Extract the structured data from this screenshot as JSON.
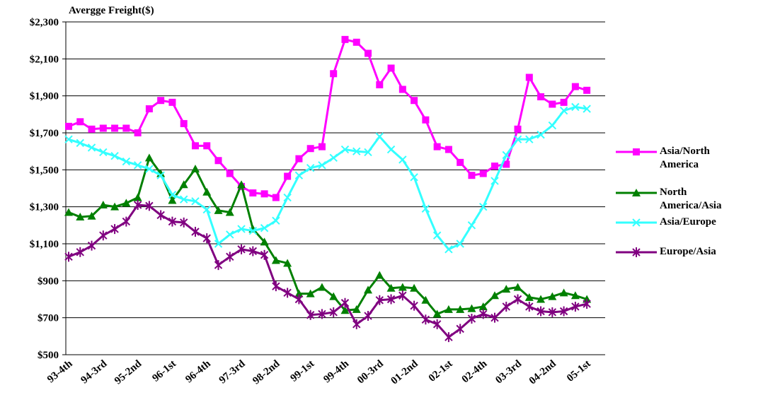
{
  "chart_data": {
    "type": "line",
    "title": "Avergge Freight($)",
    "categories": [
      "93-4th",
      null,
      null,
      "94-3rd",
      null,
      null,
      "95-2nd",
      null,
      null,
      "96-1st",
      null,
      null,
      "96-4th",
      null,
      null,
      "97-3rd",
      null,
      null,
      "98-2nd",
      null,
      null,
      "99-1st",
      null,
      null,
      "99-4th",
      null,
      null,
      "00-3rd",
      null,
      null,
      "01-2nd",
      null,
      null,
      "02-1st",
      null,
      null,
      "02-4th",
      null,
      null,
      "03-3rd",
      null,
      null,
      "04-2nd",
      null,
      null,
      "05-1st"
    ],
    "series": [
      {
        "name": "Asia/North America",
        "color": "#ff00ff",
        "marker": "square",
        "values": [
          1735,
          1760,
          1720,
          1725,
          1725,
          1725,
          1700,
          1830,
          1875,
          1865,
          1750,
          1630,
          1630,
          1550,
          1480,
          1410,
          1375,
          1370,
          1350,
          1465,
          1560,
          1615,
          1625,
          2020,
          2205,
          2190,
          2130,
          1960,
          2050,
          1935,
          1875,
          1770,
          1625,
          1610,
          1540,
          1470,
          1480,
          1520,
          1530,
          1720,
          2000,
          1895,
          1855,
          1865,
          1950,
          1930
        ]
      },
      {
        "name": "North America/Asia",
        "color": "#008000",
        "marker": "triangle",
        "values": [
          1270,
          1245,
          1250,
          1310,
          1300,
          1320,
          1350,
          1565,
          1480,
          1335,
          1420,
          1505,
          1380,
          1280,
          1270,
          1420,
          1180,
          1110,
          1010,
          995,
          830,
          830,
          865,
          815,
          740,
          745,
          850,
          930,
          860,
          865,
          860,
          795,
          720,
          745,
          745,
          750,
          760,
          820,
          855,
          865,
          810,
          800,
          815,
          835,
          820,
          800
        ]
      },
      {
        "name": "Asia/Europe",
        "color": "#33ffff",
        "marker": "x",
        "values": [
          1665,
          1645,
          1620,
          1595,
          1575,
          1545,
          1525,
          1505,
          1470,
          1365,
          1340,
          1330,
          1285,
          1100,
          1150,
          1180,
          1170,
          1185,
          1225,
          1350,
          1470,
          1510,
          1525,
          1565,
          1610,
          1600,
          1595,
          1680,
          1610,
          1555,
          1460,
          1290,
          1145,
          1070,
          1100,
          1200,
          1300,
          1440,
          1580,
          1665,
          1665,
          1690,
          1740,
          1820,
          1840,
          1830
        ]
      },
      {
        "name": "Europe/Asia",
        "color": "#800080",
        "marker": "star",
        "values": [
          1030,
          1055,
          1090,
          1145,
          1180,
          1220,
          1310,
          1305,
          1255,
          1220,
          1215,
          1165,
          1130,
          985,
          1030,
          1070,
          1060,
          1040,
          870,
          835,
          800,
          715,
          720,
          730,
          780,
          665,
          710,
          795,
          800,
          820,
          765,
          690,
          665,
          595,
          640,
          695,
          720,
          700,
          760,
          800,
          760,
          735,
          730,
          735,
          760,
          775
        ]
      }
    ],
    "ylim": [
      500,
      2300
    ],
    "yticks": [
      {
        "value": 500,
        "label": "$500"
      },
      {
        "value": 700,
        "label": "$700"
      },
      {
        "value": 900,
        "label": "$900"
      },
      {
        "value": 1100,
        "label": "$1,100"
      },
      {
        "value": 1300,
        "label": "$1,300"
      },
      {
        "value": 1500,
        "label": "$1,500"
      },
      {
        "value": 1700,
        "label": "$1,700"
      },
      {
        "value": 1900,
        "label": "$1,900"
      },
      {
        "value": 2100,
        "label": "$2,100"
      },
      {
        "value": 2300,
        "label": "$2,300"
      }
    ],
    "grid": true,
    "legend": "right"
  }
}
